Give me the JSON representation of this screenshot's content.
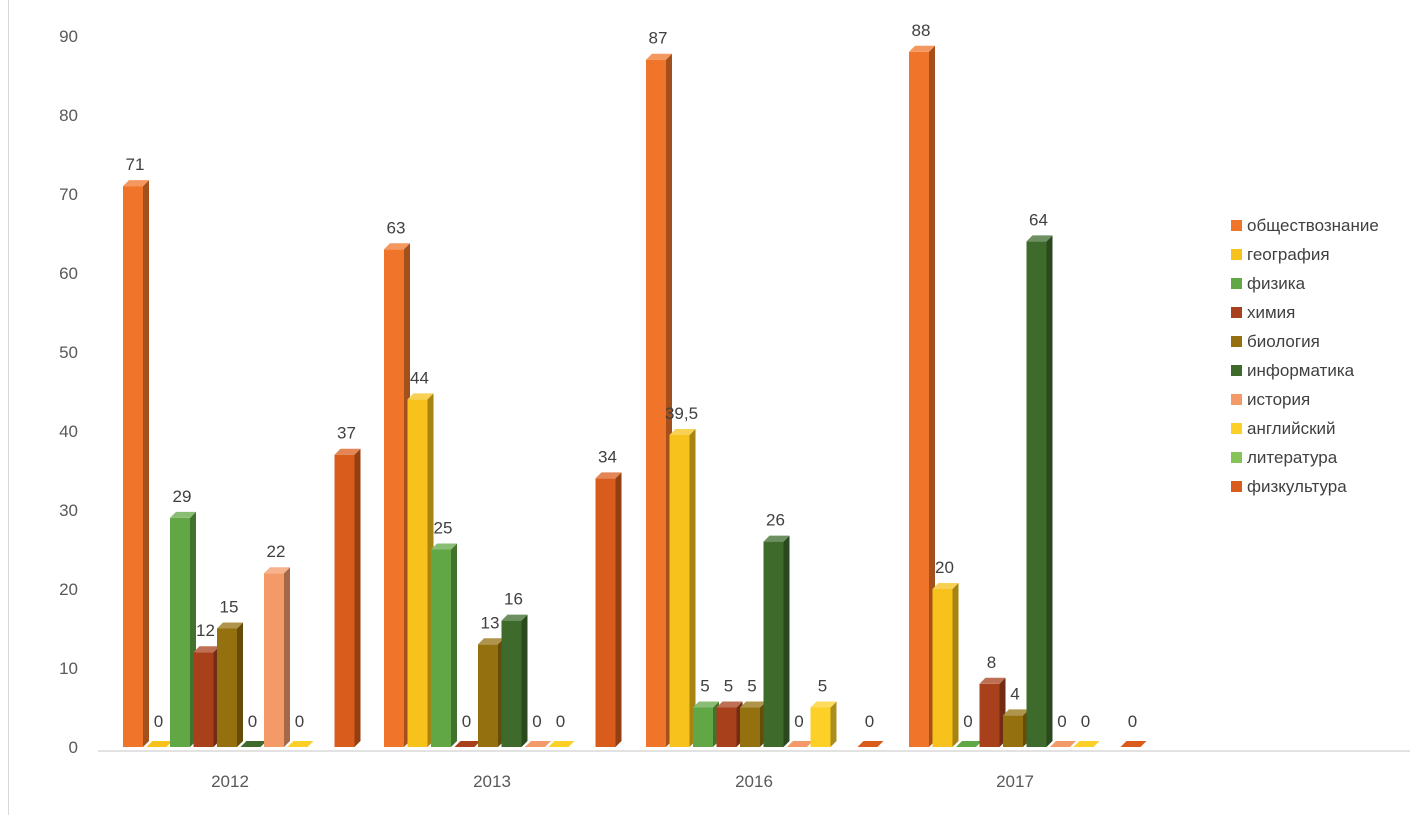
{
  "chart_data": {
    "type": "bar",
    "categories": [
      "2012",
      "2013",
      "2016",
      "2017"
    ],
    "series": [
      {
        "name": "обществознание",
        "color": "#F0752A",
        "values": [
          71,
          63,
          87,
          88
        ],
        "labels": [
          "71",
          "63",
          "87",
          "88"
        ]
      },
      {
        "name": "география",
        "color": "#F6C21B",
        "values": [
          0,
          44,
          39.5,
          20
        ],
        "labels": [
          "0",
          "44",
          "39,5",
          "20"
        ]
      },
      {
        "name": "физика",
        "color": "#62A745",
        "values": [
          29,
          25,
          5,
          0
        ],
        "labels": [
          "29",
          "25",
          "5",
          "0"
        ]
      },
      {
        "name": "химия",
        "color": "#A8401C",
        "values": [
          12,
          0,
          5,
          8
        ],
        "labels": [
          "12",
          "0",
          "5",
          "8"
        ]
      },
      {
        "name": "биология",
        "color": "#94700F",
        "values": [
          15,
          13,
          5,
          4
        ],
        "labels": [
          "15",
          "13",
          "5",
          "4"
        ]
      },
      {
        "name": "информатика",
        "color": "#3E6B2B",
        "values": [
          0,
          16,
          26,
          64
        ],
        "labels": [
          "0",
          "16",
          "26",
          "64"
        ]
      },
      {
        "name": "история",
        "color": "#F39A68",
        "values": [
          22,
          0,
          0,
          0
        ],
        "labels": [
          "22",
          "0",
          "0",
          "0"
        ]
      },
      {
        "name": "английский",
        "color": "#FCD027",
        "values": [
          0,
          0,
          5,
          0
        ],
        "labels": [
          "0",
          "0",
          "5",
          "0"
        ]
      },
      {
        "name": "литература",
        "color": "#86C45A",
        "values": [
          null,
          null,
          null,
          null
        ],
        "labels": [
          "",
          "",
          "",
          ""
        ]
      },
      {
        "name": "физкультура",
        "color": "#D95C1C",
        "values": [
          37,
          34,
          0,
          0
        ],
        "labels": [
          "37",
          "34",
          "0",
          "0"
        ]
      }
    ],
    "ylim": [
      0,
      90
    ],
    "yticks": [
      0,
      10,
      20,
      30,
      40,
      50,
      60,
      70,
      80,
      90
    ],
    "grid": false,
    "legend": "right",
    "style": "3d-column"
  }
}
